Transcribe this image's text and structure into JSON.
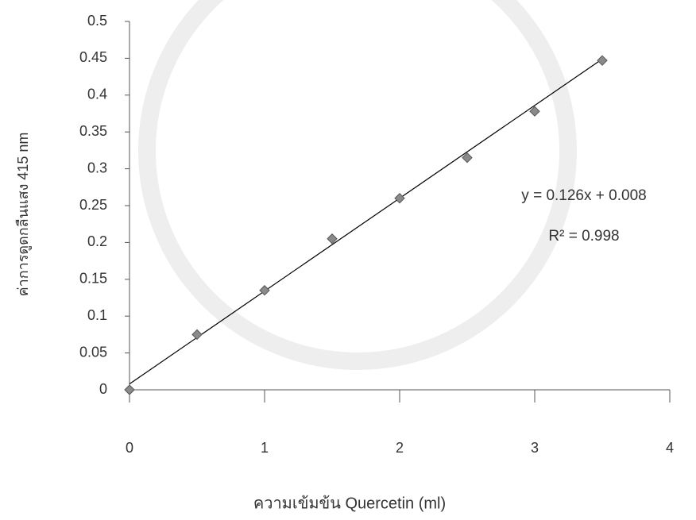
{
  "chart_data": {
    "type": "scatter",
    "x_label": "ความเข้มข้น Quercetin (ml)",
    "y_label": "ค่าการดูดกลืนแสง 415 nm",
    "x": [
      0,
      0.5,
      1,
      1.5,
      2,
      2.5,
      3,
      3.5
    ],
    "values": [
      0,
      0.075,
      0.135,
      0.205,
      0.26,
      0.315,
      0.378,
      0.447
    ],
    "color": "#8a8a8a",
    "xlim": [
      0,
      4
    ],
    "xticks": [
      0,
      1,
      2,
      3,
      4
    ],
    "ylim": [
      0,
      0.5
    ],
    "yticks": [
      0,
      0.05,
      0.1,
      0.15,
      0.2,
      0.25,
      0.3,
      0.35,
      0.4,
      0.45,
      0.5
    ],
    "grid": false,
    "trendline": {
      "slope": 0.126,
      "intercept": 0.008,
      "equation": "y = 0.126x + 0.008",
      "r2_label": "R² = 0.998",
      "color": "#000000"
    }
  }
}
